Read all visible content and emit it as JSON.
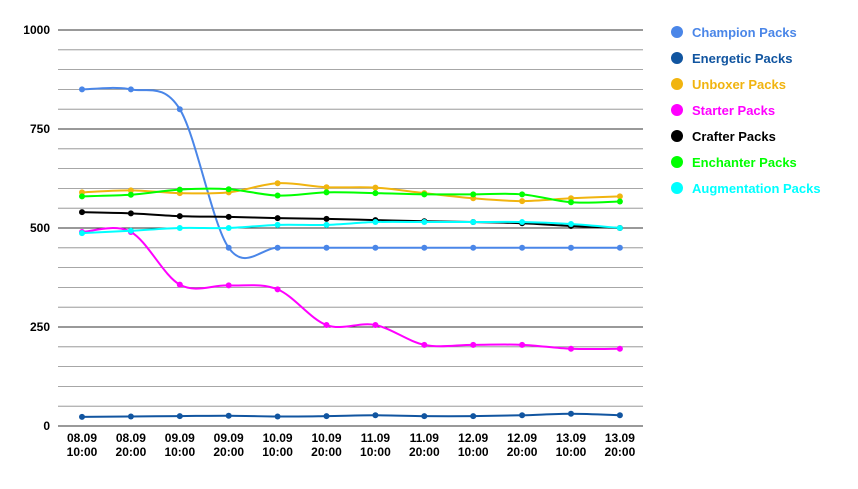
{
  "chart_data": {
    "type": "line",
    "title": "",
    "xlabel": "",
    "ylabel": "",
    "ylim": [
      0,
      1000
    ],
    "y_ticks": [
      "0",
      "250",
      "500",
      "750",
      "1000"
    ],
    "grid": true,
    "legend_position": "right",
    "smooth": true,
    "categories": [
      [
        "08.09",
        "10:00"
      ],
      [
        "08.09",
        "20:00"
      ],
      [
        "09.09",
        "10:00"
      ],
      [
        "09.09",
        "20:00"
      ],
      [
        "10.09",
        "10:00"
      ],
      [
        "10.09",
        "20:00"
      ],
      [
        "11.09",
        "10:00"
      ],
      [
        "11.09",
        "20:00"
      ],
      [
        "12.09",
        "10:00"
      ],
      [
        "12.09",
        "20:00"
      ],
      [
        "13.09",
        "10:00"
      ],
      [
        "13.09",
        "20:00"
      ]
    ],
    "series": [
      {
        "name": "Champion Packs",
        "color": "#4a86e8",
        "values": [
          850,
          850,
          800,
          450,
          450,
          450,
          450,
          450,
          450,
          450,
          450,
          450
        ]
      },
      {
        "name": "Energetic Packs",
        "color": "#1155a0",
        "values": [
          23,
          24,
          25,
          26,
          24,
          25,
          27,
          25,
          25,
          27,
          31,
          27
        ]
      },
      {
        "name": "Unboxer Packs",
        "color": "#f1b40f",
        "values": [
          590,
          595,
          588,
          590,
          613,
          603,
          602,
          588,
          575,
          568,
          575,
          580
        ]
      },
      {
        "name": "Starter Packs",
        "color": "#ff00ff",
        "values": [
          490,
          490,
          357,
          355,
          345,
          255,
          255,
          205,
          205,
          205,
          195,
          195
        ]
      },
      {
        "name": "Crafter Packs",
        "color": "#000000",
        "values": [
          540,
          537,
          530,
          528,
          525,
          523,
          520,
          517,
          515,
          512,
          505,
          500
        ]
      },
      {
        "name": "Enchanter Packs",
        "color": "#00ff00",
        "values": [
          580,
          584,
          597,
          598,
          582,
          590,
          588,
          585,
          585,
          585,
          565,
          567
        ]
      },
      {
        "name": "Augmentation Packs",
        "color": "#00ffff",
        "values": [
          487,
          493,
          500,
          500,
          508,
          508,
          515,
          515,
          515,
          515,
          510,
          500
        ]
      }
    ]
  }
}
